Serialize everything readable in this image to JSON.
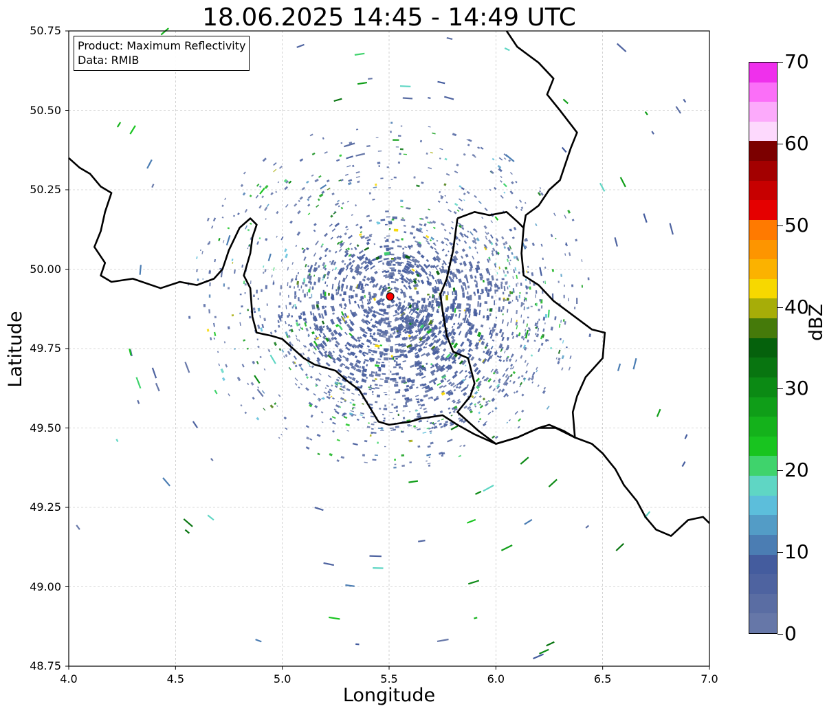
{
  "title": "18.06.2025 14:45 - 14:49 UTC",
  "info": {
    "product": "Product: Maximum Reflectivity",
    "data": "Data: RMIB"
  },
  "axes": {
    "xlabel": "Longitude",
    "ylabel": "Latitude",
    "xlim": [
      4.0,
      7.0
    ],
    "ylim": [
      48.75,
      50.75
    ],
    "xticks": [
      "4.0",
      "4.5",
      "5.0",
      "5.5",
      "6.0",
      "6.5",
      "7.0"
    ],
    "yticks": [
      "48.75",
      "49.00",
      "49.25",
      "49.50",
      "49.75",
      "50.00",
      "50.25",
      "50.50",
      "50.75"
    ],
    "grid": true
  },
  "radar_site": {
    "lon": 5.505,
    "lat": 49.914,
    "color": "#ff0000"
  },
  "colorbar": {
    "label": "dBZ",
    "min": 0,
    "max": 70,
    "ticks": [
      "0",
      "10",
      "20",
      "30",
      "40",
      "50",
      "60",
      "70"
    ],
    "colors": [
      "#6677a8",
      "#5a6da3",
      "#4e63a0",
      "#445c9e",
      "#4b7db3",
      "#539cc6",
      "#5cbedb",
      "#5fd6c4",
      "#3fd36c",
      "#18c41f",
      "#14b21b",
      "#0f9e18",
      "#0b8a14",
      "#087510",
      "#05610c",
      "#457a0a",
      "#a7ad08",
      "#f7d800",
      "#fbb200",
      "#fd9500",
      "#ff7a00",
      "#e50000",
      "#c70000",
      "#a30000",
      "#7c0000",
      "#fdd9fd",
      "#fcaafb",
      "#fb6ff8",
      "#ef30ec"
    ]
  },
  "borders": {
    "color": "#000000",
    "lines": [
      [
        [
          4.0,
          50.35
        ],
        [
          4.05,
          50.32
        ],
        [
          4.1,
          50.3
        ],
        [
          4.15,
          50.26
        ],
        [
          4.2,
          50.24
        ],
        [
          4.17,
          50.18
        ],
        [
          4.15,
          50.12
        ],
        [
          4.12,
          50.07
        ],
        [
          4.17,
          50.02
        ],
        [
          4.15,
          49.98
        ],
        [
          4.2,
          49.96
        ],
        [
          4.3,
          49.97
        ],
        [
          4.43,
          49.94
        ],
        [
          4.52,
          49.96
        ],
        [
          4.6,
          49.95
        ],
        [
          4.68,
          49.97
        ],
        [
          4.72,
          50.0
        ],
        [
          4.75,
          50.06
        ],
        [
          4.8,
          50.13
        ],
        [
          4.85,
          50.16
        ],
        [
          4.88,
          50.14
        ],
        [
          4.86,
          50.1
        ],
        [
          4.85,
          50.05
        ],
        [
          4.82,
          49.98
        ],
        [
          4.85,
          49.94
        ],
        [
          4.86,
          49.85
        ],
        [
          4.88,
          49.8
        ],
        [
          4.95,
          49.79
        ],
        [
          5.0,
          49.78
        ],
        [
          5.05,
          49.75
        ],
        [
          5.1,
          49.72
        ],
        [
          5.15,
          49.7
        ],
        [
          5.25,
          49.68
        ],
        [
          5.3,
          49.65
        ],
        [
          5.36,
          49.62
        ],
        [
          5.45,
          49.52
        ],
        [
          5.5,
          49.51
        ],
        [
          5.6,
          49.52
        ],
        [
          5.65,
          49.53
        ],
        [
          5.75,
          49.54
        ],
        [
          5.82,
          49.51
        ],
        [
          5.9,
          49.48
        ],
        [
          6.0,
          49.45
        ],
        [
          6.1,
          49.47
        ],
        [
          6.2,
          49.5
        ],
        [
          6.25,
          49.51
        ],
        [
          6.32,
          49.49
        ],
        [
          6.37,
          49.47
        ],
        [
          6.45,
          49.45
        ],
        [
          6.5,
          49.42
        ],
        [
          6.56,
          49.37
        ],
        [
          6.6,
          49.32
        ],
        [
          6.66,
          49.27
        ],
        [
          6.7,
          49.22
        ],
        [
          6.75,
          49.18
        ],
        [
          6.82,
          49.16
        ],
        [
          6.9,
          49.21
        ],
        [
          6.97,
          49.22
        ],
        [
          7.0,
          49.2
        ]
      ],
      [
        [
          5.82,
          50.16
        ],
        [
          5.9,
          50.18
        ],
        [
          5.97,
          50.17
        ],
        [
          6.05,
          50.18
        ],
        [
          6.1,
          50.15
        ],
        [
          6.13,
          50.13
        ],
        [
          6.12,
          50.05
        ],
        [
          6.13,
          49.98
        ],
        [
          6.2,
          49.95
        ],
        [
          6.27,
          49.9
        ],
        [
          6.35,
          49.86
        ],
        [
          6.45,
          49.81
        ],
        [
          6.51,
          49.8
        ],
        [
          6.5,
          49.72
        ],
        [
          6.42,
          49.66
        ],
        [
          6.38,
          49.6
        ],
        [
          6.36,
          49.55
        ],
        [
          6.37,
          49.47
        ],
        [
          6.28,
          49.5
        ],
        [
          6.2,
          49.5
        ],
        [
          6.1,
          49.47
        ],
        [
          6.0,
          49.45
        ],
        [
          5.92,
          49.49
        ],
        [
          5.82,
          49.55
        ],
        [
          5.88,
          49.6
        ],
        [
          5.9,
          49.64
        ],
        [
          5.87,
          49.72
        ],
        [
          5.8,
          49.74
        ],
        [
          5.77,
          49.79
        ],
        [
          5.75,
          49.87
        ],
        [
          5.74,
          49.92
        ],
        [
          5.77,
          49.97
        ],
        [
          5.8,
          50.06
        ],
        [
          5.82,
          50.16
        ]
      ],
      [
        [
          6.05,
          50.75
        ],
        [
          6.1,
          50.7
        ],
        [
          6.2,
          50.65
        ],
        [
          6.27,
          50.6
        ],
        [
          6.24,
          50.55
        ],
        [
          6.3,
          50.5
        ],
        [
          6.38,
          50.43
        ],
        [
          6.35,
          50.38
        ],
        [
          6.32,
          50.32
        ],
        [
          6.3,
          50.28
        ],
        [
          6.25,
          50.25
        ],
        [
          6.2,
          50.2
        ],
        [
          6.14,
          50.17
        ],
        [
          6.13,
          50.13
        ]
      ]
    ]
  },
  "echo_seed": 20250618,
  "echo_count": 2600,
  "streak_count": 140
}
